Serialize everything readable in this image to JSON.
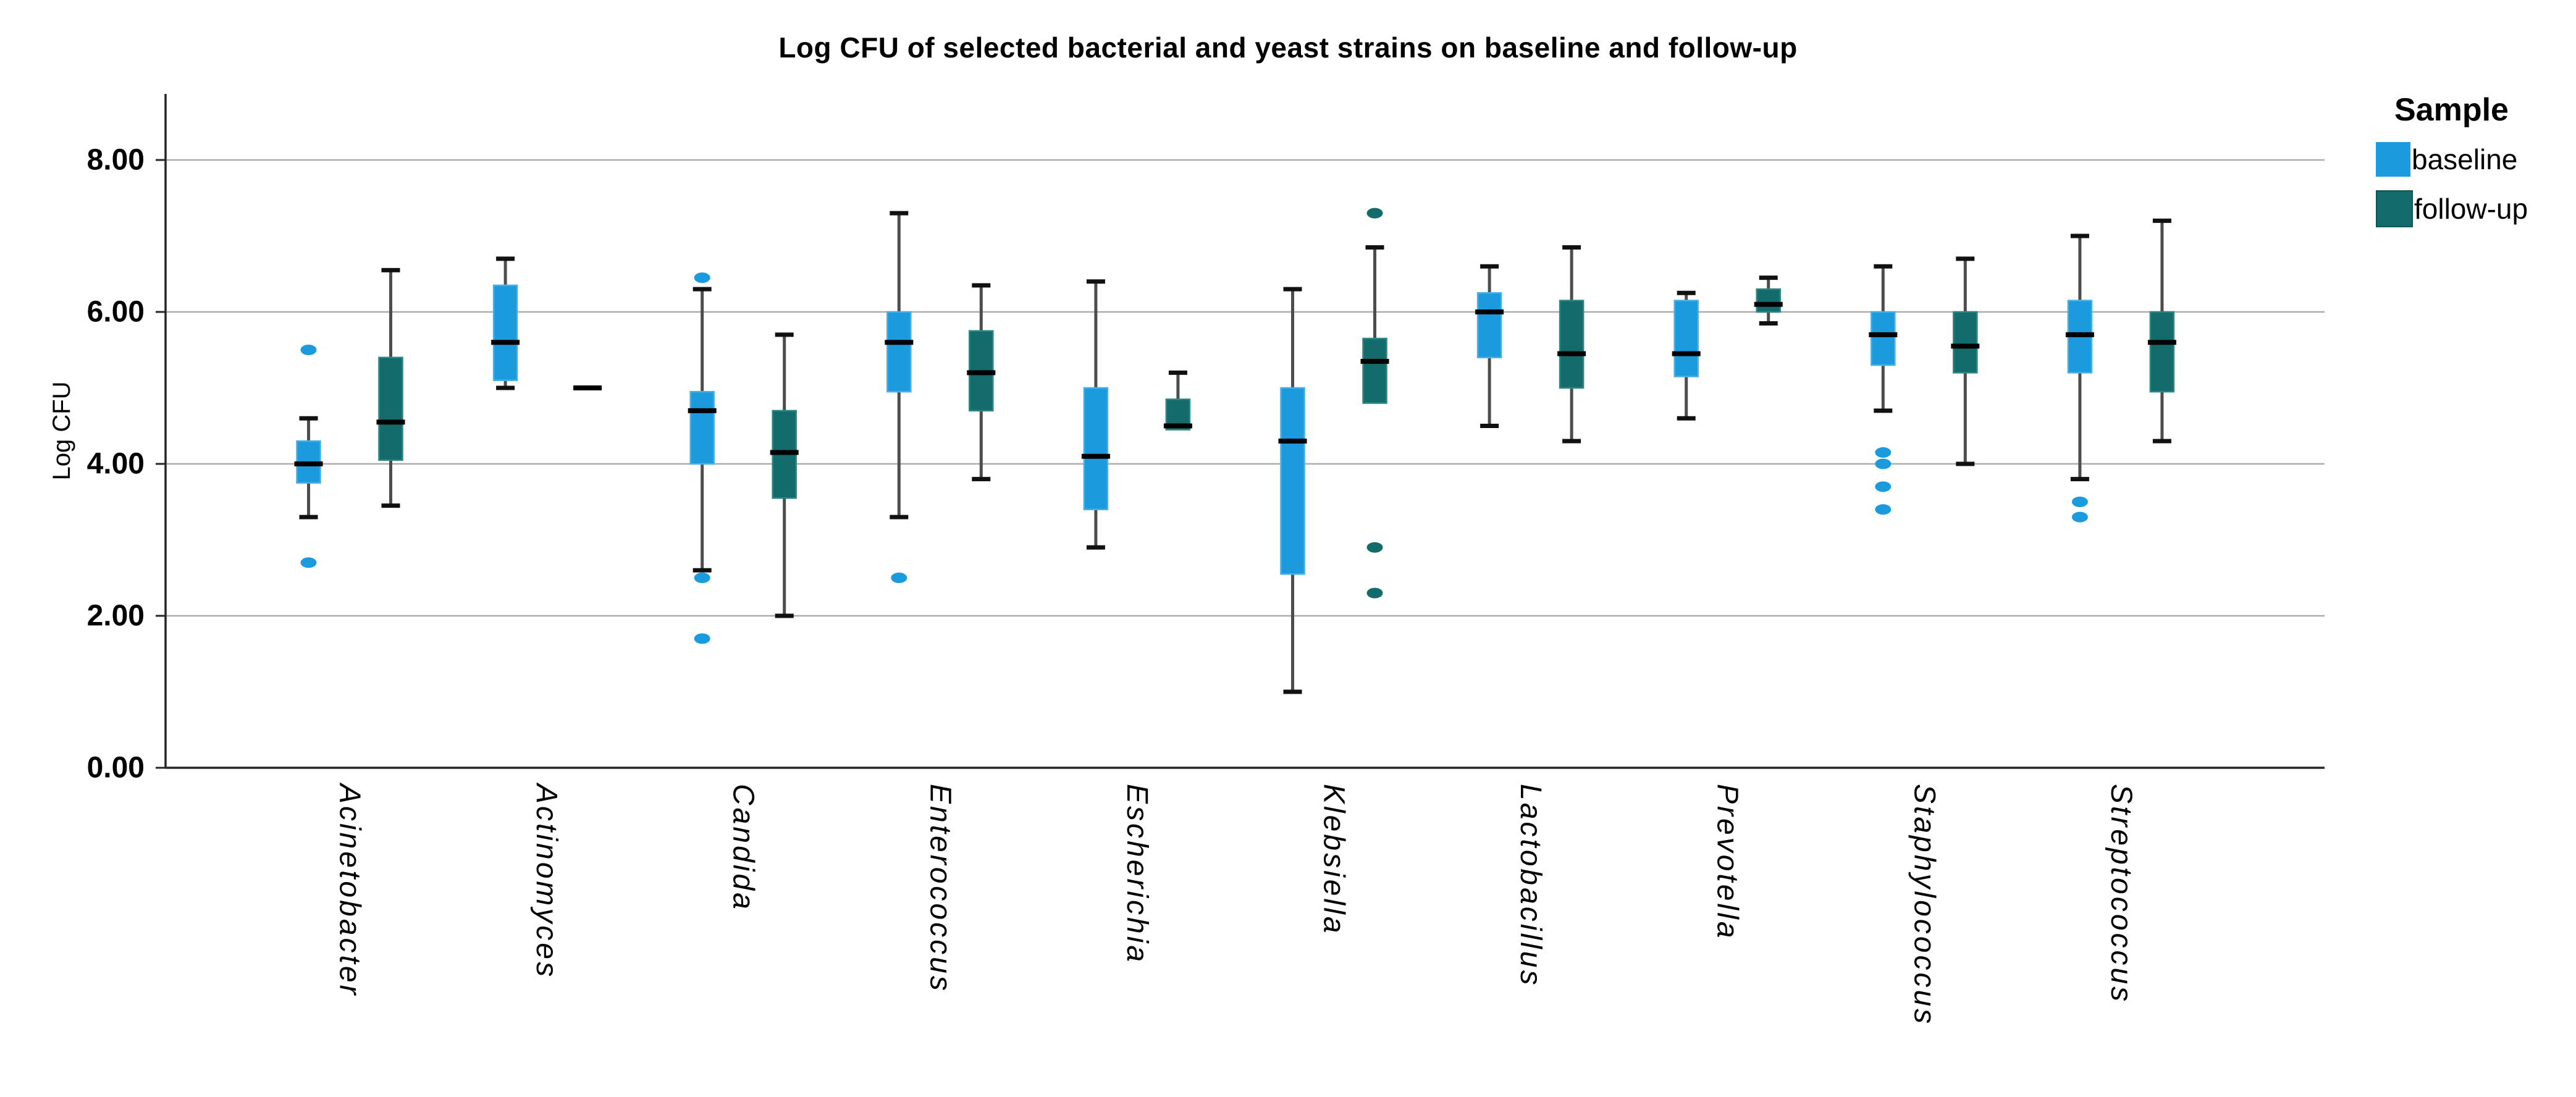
{
  "chart_data": {
    "type": "boxplot",
    "title": "Log CFU of selected bacterial and yeast strains on baseline and follow-up",
    "ylabel": "Log CFU",
    "ylim": [
      0,
      8.6
    ],
    "yticks": {
      "values": [
        0,
        2,
        4,
        6,
        8
      ],
      "labels": [
        "0.00",
        "2.00",
        "4.00",
        "6.00",
        "8.00"
      ]
    },
    "grid": "horizontal",
    "legend": {
      "title": "Sample",
      "position": "right",
      "series": [
        {
          "name": "baseline",
          "color": "#1B9BDE"
        },
        {
          "name": "follow-up",
          "color": "#136C6B"
        }
      ]
    },
    "categories": [
      "Acinetobacter",
      "Actinomyces",
      "Candida",
      "Enterococcus",
      "Escherichia",
      "Klebsiella",
      "Lactobacillus",
      "Prevotella",
      "Staphylococcus",
      "Streptococcus"
    ],
    "series": [
      {
        "name": "baseline",
        "color": "#1B9BDE",
        "edge_color": "#49AFE4",
        "boxes": [
          {
            "category": "Acinetobacter",
            "low": 3.3,
            "q1": 3.75,
            "median": 4.0,
            "q3": 4.3,
            "high": 4.6,
            "outliers": [
              5.5,
              2.7
            ]
          },
          {
            "category": "Actinomyces",
            "low": 5.0,
            "q1": 5.1,
            "median": 5.6,
            "q3": 6.35,
            "high": 6.7,
            "outliers": []
          },
          {
            "category": "Candida",
            "low": 2.6,
            "q1": 4.0,
            "median": 4.7,
            "q3": 4.95,
            "high": 6.3,
            "outliers": [
              6.45,
              2.5,
              1.7
            ]
          },
          {
            "category": "Enterococcus",
            "low": 3.3,
            "q1": 4.95,
            "median": 5.6,
            "q3": 6.0,
            "high": 7.3,
            "outliers": [
              2.5
            ]
          },
          {
            "category": "Escherichia",
            "low": 2.9,
            "q1": 3.4,
            "median": 4.1,
            "q3": 5.0,
            "high": 6.4,
            "outliers": []
          },
          {
            "category": "Klebsiella",
            "low": 1.0,
            "q1": 2.55,
            "median": 4.3,
            "q3": 5.0,
            "high": 6.3,
            "outliers": []
          },
          {
            "category": "Lactobacillus",
            "low": 4.5,
            "q1": 5.4,
            "median": 6.0,
            "q3": 6.25,
            "high": 6.6,
            "outliers": []
          },
          {
            "category": "Prevotella",
            "low": 4.6,
            "q1": 5.15,
            "median": 5.45,
            "q3": 6.15,
            "high": 6.25,
            "outliers": []
          },
          {
            "category": "Staphylococcus",
            "low": 4.7,
            "q1": 5.3,
            "median": 5.7,
            "q3": 6.0,
            "high": 6.6,
            "outliers": [
              4.15,
              4.0,
              3.7,
              3.4
            ]
          },
          {
            "category": "Streptococcus",
            "low": 3.8,
            "q1": 5.2,
            "median": 5.7,
            "q3": 6.15,
            "high": 7.0,
            "outliers": [
              3.5,
              3.3
            ]
          }
        ]
      },
      {
        "name": "follow-up",
        "color": "#136C6B",
        "edge_color": "#2E8683",
        "boxes": [
          {
            "category": "Acinetobacter",
            "low": 3.45,
            "q1": 4.05,
            "median": 4.55,
            "q3": 5.4,
            "high": 6.55,
            "outliers": []
          },
          {
            "category": "Actinomyces",
            "low": 5.0,
            "q1": 5.0,
            "median": 5.0,
            "q3": 5.0,
            "high": 5.0,
            "outliers": [],
            "single_value": true
          },
          {
            "category": "Candida",
            "low": 2.0,
            "q1": 3.55,
            "median": 4.15,
            "q3": 4.7,
            "high": 5.7,
            "outliers": []
          },
          {
            "category": "Enterococcus",
            "low": 3.8,
            "q1": 4.7,
            "median": 5.2,
            "q3": 5.75,
            "high": 6.35,
            "outliers": []
          },
          {
            "category": "Escherichia",
            "low": 4.45,
            "q1": 4.45,
            "median": 4.5,
            "q3": 4.85,
            "high": 5.2,
            "outliers": []
          },
          {
            "category": "Klebsiella",
            "low": 4.8,
            "q1": 4.8,
            "median": 5.35,
            "q3": 5.65,
            "high": 6.85,
            "outliers": [
              7.3,
              2.9,
              2.3
            ]
          },
          {
            "category": "Lactobacillus",
            "low": 4.3,
            "q1": 5.0,
            "median": 5.45,
            "q3": 6.15,
            "high": 6.85,
            "outliers": []
          },
          {
            "category": "Prevotella",
            "low": 5.85,
            "q1": 6.0,
            "median": 6.1,
            "q3": 6.3,
            "high": 6.45,
            "outliers": []
          },
          {
            "category": "Staphylococcus",
            "low": 4.0,
            "q1": 5.2,
            "median": 5.55,
            "q3": 6.0,
            "high": 6.7,
            "outliers": []
          },
          {
            "category": "Streptococcus",
            "low": 4.3,
            "q1": 4.95,
            "median": 5.6,
            "q3": 6.0,
            "high": 7.2,
            "outliers": []
          }
        ]
      }
    ]
  }
}
